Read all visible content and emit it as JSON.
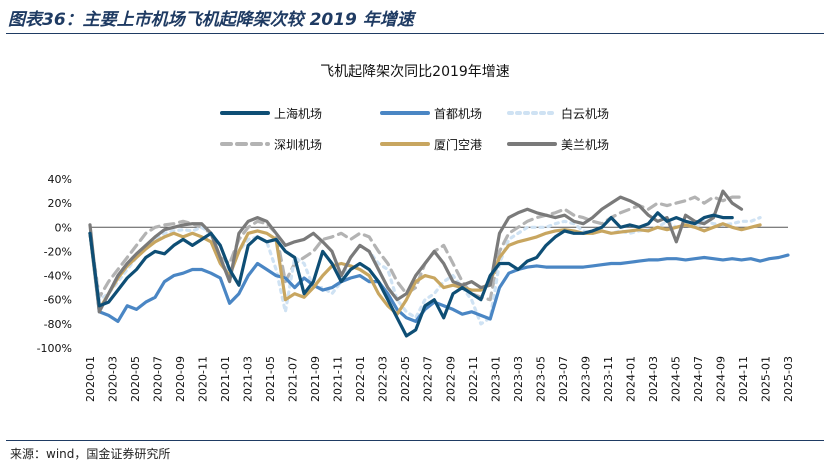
{
  "figure": {
    "title": "图表36：主要上市机场飞机起降架次较 2019 年增速",
    "source": "来源：wind，国金证券研究所"
  },
  "chart_data": {
    "type": "line",
    "title": "飞机起降架次同比2019年增速",
    "x_tick_labels": [
      "2020-01",
      "2020-03",
      "2020-05",
      "2020-07",
      "2020-09",
      "2020-11",
      "2021-01",
      "2021-03",
      "2021-05",
      "2021-07",
      "2021-09",
      "2021-11",
      "2022-01",
      "2022-03",
      "2022-05",
      "2022-07",
      "2022-09",
      "2022-11",
      "2023-01",
      "2023-03",
      "2023-05",
      "2023-07",
      "2023-09",
      "2023-11",
      "2024-01",
      "2024-03",
      "2024-05",
      "2024-07",
      "2024-09",
      "2024-11",
      "2025-01",
      "2025-03"
    ],
    "y_tick_labels": [
      "40%",
      "20%",
      "0%",
      "-20%",
      "-40%",
      "-60%",
      "-80%",
      "-100%"
    ],
    "ylim": [
      -100,
      40
    ],
    "y_unit": "%",
    "legend_position": "top",
    "series": [
      {
        "name": "上海机场",
        "color": "#0e4e75",
        "dash": "solid",
        "values": [
          -5,
          -65,
          -62,
          -52,
          -42,
          -35,
          -25,
          -20,
          -22,
          -15,
          -10,
          -15,
          -10,
          -5,
          -15,
          -35,
          -48,
          -15,
          -8,
          -12,
          -10,
          -20,
          -25,
          -55,
          -45,
          -20,
          -30,
          -45,
          -35,
          -30,
          -35,
          -45,
          -60,
          -75,
          -90,
          -85,
          -65,
          -60,
          -75,
          -55,
          -50,
          -55,
          -60,
          -40,
          -30,
          -30,
          -35,
          -28,
          -25,
          -15,
          -8,
          -3,
          -5,
          -5,
          -3,
          0,
          8,
          0,
          2,
          0,
          3,
          12,
          5,
          8,
          5,
          3,
          8,
          10,
          8,
          8
        ]
      },
      {
        "name": "首都机场",
        "color": "#4a86c4",
        "dash": "solid",
        "values": [
          -5,
          -70,
          -73,
          -78,
          -65,
          -68,
          -62,
          -58,
          -45,
          -40,
          -38,
          -35,
          -35,
          -38,
          -42,
          -63,
          -55,
          -40,
          -30,
          -35,
          -40,
          -42,
          -50,
          -42,
          -48,
          -52,
          -50,
          -45,
          -42,
          -40,
          -45,
          -45,
          -55,
          -68,
          -75,
          -78,
          -68,
          -62,
          -65,
          -68,
          -72,
          -70,
          -73,
          -76,
          -50,
          -38,
          -35,
          -33,
          -32,
          -33,
          -33,
          -33,
          -33,
          -33,
          -32,
          -31,
          -30,
          -30,
          -29,
          -28,
          -27,
          -27,
          -26,
          -26,
          -27,
          -26,
          -25,
          -26,
          -27,
          -26,
          -27,
          -26,
          -28,
          -26,
          -25,
          -23
        ]
      },
      {
        "name": "白云机场",
        "color": "#cfe2f3",
        "dash": "dot",
        "values": [
          -5,
          -60,
          -55,
          -45,
          -35,
          -25,
          -15,
          -10,
          -5,
          -3,
          -2,
          -3,
          0,
          -5,
          -25,
          -40,
          -20,
          -10,
          -8,
          -12,
          -35,
          -70,
          -25,
          -30,
          -50,
          -50,
          -55,
          -45,
          -25,
          -15,
          -20,
          -30,
          -35,
          -60,
          -70,
          -75,
          -60,
          -55,
          -45,
          -40,
          -50,
          -60,
          -80,
          -75,
          -30,
          -10,
          -5,
          0,
          0,
          0,
          3,
          5,
          3,
          -3,
          -5,
          -3,
          -5,
          -3,
          -5,
          -3,
          -2,
          0,
          5,
          0,
          2,
          0,
          5,
          3,
          2,
          3,
          5,
          5,
          8
        ]
      },
      {
        "name": "深圳机场",
        "color": "#b3b3b3",
        "dash": "dash",
        "values": [
          -5,
          -58,
          -45,
          -35,
          -25,
          -15,
          -5,
          0,
          2,
          3,
          5,
          3,
          0,
          -5,
          -25,
          -30,
          -10,
          0,
          5,
          3,
          -5,
          -45,
          -30,
          -25,
          -20,
          -10,
          -8,
          -5,
          -10,
          -5,
          -8,
          -20,
          -30,
          -45,
          -55,
          -50,
          -30,
          -20,
          -15,
          -30,
          -45,
          -55,
          -58,
          -60,
          -20,
          -5,
          0,
          5,
          8,
          10,
          12,
          15,
          10,
          8,
          5,
          3,
          8,
          12,
          15,
          18,
          15,
          20,
          18,
          20,
          22,
          25,
          20,
          25,
          22,
          25,
          25
        ]
      },
      {
        "name": "厦门空港",
        "color": "#c8a660",
        "dash": "solid",
        "values": [
          -5,
          -68,
          -55,
          -42,
          -32,
          -25,
          -18,
          -12,
          -8,
          -5,
          -8,
          -5,
          -8,
          -12,
          -30,
          -40,
          -20,
          -5,
          -3,
          -5,
          -10,
          -60,
          -55,
          -58,
          -50,
          -40,
          -32,
          -30,
          -32,
          -35,
          -40,
          -55,
          -65,
          -72,
          -60,
          -45,
          -40,
          -42,
          -50,
          -48,
          -50,
          -52,
          -52,
          -45,
          -25,
          -15,
          -12,
          -10,
          -8,
          -5,
          -3,
          -2,
          -3,
          -5,
          -5,
          -3,
          -5,
          -4,
          -3,
          -2,
          -3,
          0,
          -2,
          0,
          2,
          0,
          -3,
          0,
          3,
          0,
          -2,
          0,
          2
        ]
      },
      {
        "name": "美兰机场",
        "color": "#7a7a7a",
        "dash": "solid",
        "values": [
          2,
          -70,
          -55,
          -40,
          -30,
          -22,
          -15,
          -8,
          -2,
          0,
          2,
          3,
          3,
          -5,
          -25,
          -45,
          -5,
          5,
          8,
          5,
          -5,
          -15,
          -12,
          -10,
          -5,
          -12,
          -20,
          -40,
          -25,
          -15,
          -20,
          -35,
          -50,
          -60,
          -55,
          -40,
          -30,
          -20,
          -30,
          -45,
          -48,
          -45,
          -50,
          -48,
          -5,
          8,
          12,
          15,
          12,
          10,
          8,
          10,
          5,
          3,
          8,
          15,
          20,
          25,
          22,
          18,
          10,
          5,
          8,
          -12,
          10,
          5,
          3,
          8,
          30,
          20,
          15
        ]
      }
    ]
  }
}
